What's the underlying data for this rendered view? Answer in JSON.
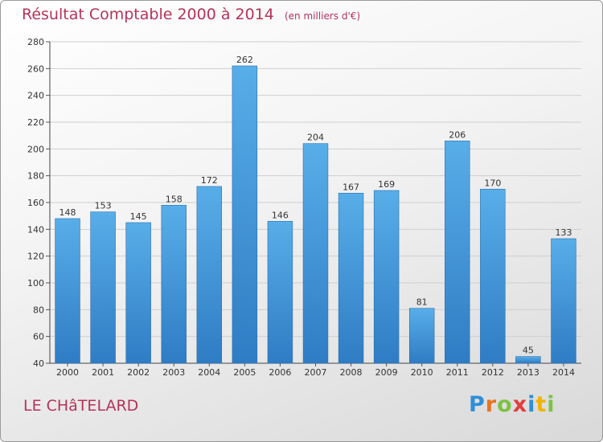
{
  "chart_data": {
    "type": "bar",
    "title": "Résultat Comptable 2000 à 2014",
    "unit_label": "(en milliers d'€)",
    "categories": [
      "2000",
      "2001",
      "2002",
      "2003",
      "2004",
      "2005",
      "2006",
      "2007",
      "2008",
      "2009",
      "2010",
      "2011",
      "2012",
      "2013",
      "2014"
    ],
    "values": [
      148,
      153,
      145,
      158,
      172,
      262,
      146,
      204,
      167,
      169,
      81,
      206,
      170,
      45,
      133
    ],
    "ylim": [
      40,
      280
    ],
    "yticks": [
      40,
      60,
      80,
      100,
      120,
      140,
      160,
      180,
      200,
      220,
      240,
      260,
      280
    ],
    "grid": true,
    "bar_color": "#4a9de0"
  },
  "place_name": "LE CHâTELARD",
  "logo": {
    "text": "Proxiti",
    "letters": [
      {
        "ch": "P",
        "color": "#2f8fd8"
      },
      {
        "ch": "r",
        "color": "#e8731e"
      },
      {
        "ch": "o",
        "color": "#7cc242"
      },
      {
        "ch": "x",
        "color": "#e23d3d"
      },
      {
        "ch": "i",
        "color": "#2f8fd8"
      },
      {
        "ch": "t",
        "color": "#f0b400"
      },
      {
        "ch": "i",
        "color": "#7cc242"
      }
    ]
  }
}
